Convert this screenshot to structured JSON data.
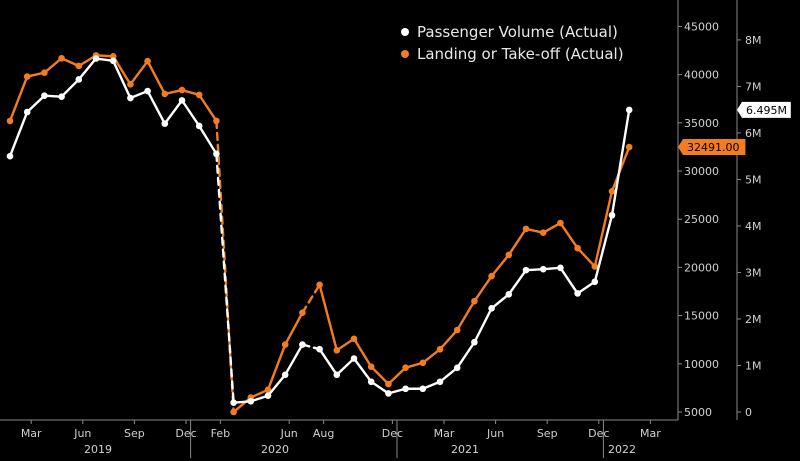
{
  "chart_data": {
    "type": "line",
    "title": "",
    "xlabel": "",
    "legend_position": "top-right",
    "grid": false,
    "x_month_ticks": [
      "Mar",
      "Jun",
      "Sep",
      "Dec",
      "Feb",
      "Jun",
      "Aug",
      "Dec",
      "Mar",
      "Jun",
      "Sep",
      "Dec",
      "Mar"
    ],
    "x_year_ticks": [
      "2019",
      "2020",
      "2021",
      "2022"
    ],
    "dates": [
      "2019-02",
      "2019-03",
      "2019-04",
      "2019-05",
      "2019-06",
      "2019-07",
      "2019-08",
      "2019-09",
      "2019-10",
      "2019-11",
      "2019-12",
      "2020-01",
      "2020-02",
      "2020-03",
      "2020-04",
      "2020-05",
      "2020-06",
      "2020-07",
      "2020-08",
      "2020-09",
      "2020-10",
      "2020-11",
      "2020-12",
      "2021-01",
      "2021-02",
      "2021-03",
      "2021-04",
      "2021-05",
      "2021-06",
      "2021-07",
      "2021-08",
      "2021-09",
      "2021-10",
      "2021-11",
      "2021-12",
      "2022-01",
      "2022-02",
      "2022-03",
      "2022-04"
    ],
    "series": [
      {
        "name": "Passenger Volume (Actual)",
        "color": "#ffffff",
        "axis": "right-inner",
        "y_ticks": [
          "8M",
          "7M",
          "6M",
          "5M",
          "4M",
          "3M",
          "2M",
          "1M",
          "0"
        ],
        "ylim": [
          0,
          8600000
        ],
        "last_value_label": "6.495M",
        "values": [
          5500000,
          6450000,
          6800000,
          6780000,
          7150000,
          7600000,
          7550000,
          6750000,
          6900000,
          6200000,
          6700000,
          6150000,
          5550000,
          200000,
          230000,
          350000,
          800000,
          1450000,
          1350000,
          800000,
          1150000,
          650000,
          400000,
          500000,
          500000,
          650000,
          950000,
          1500000,
          2230000,
          2530000,
          3050000,
          3070000,
          3100000,
          2550000,
          2800000,
          4230000,
          6495000,
          null,
          null
        ],
        "gap_after_index": 18
      },
      {
        "name": "Landing or Take-off (Actual)",
        "color": "#f47c20",
        "axis": "right-outer",
        "y_ticks": [
          "45000",
          "40000",
          "35000",
          "30000",
          "25000",
          "20000",
          "15000",
          "10000",
          "5000"
        ],
        "ylim": [
          5000,
          46500
        ],
        "last_value_label": "32491.00",
        "values": [
          35200,
          39800,
          40200,
          41700,
          40900,
          42000,
          41900,
          39000,
          41400,
          38000,
          38400,
          37900,
          35200,
          5000,
          6500,
          7300,
          12000,
          15300,
          18200,
          11400,
          12600,
          9700,
          7900,
          9600,
          10100,
          11500,
          13500,
          16500,
          19100,
          21300,
          24000,
          23600,
          24600,
          22000,
          20100,
          27900,
          32491,
          null,
          null
        ],
        "gap_after_index": 18
      }
    ]
  }
}
